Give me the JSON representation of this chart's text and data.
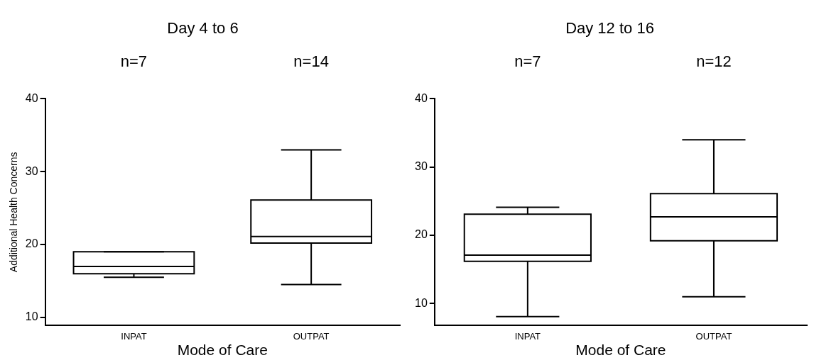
{
  "chart_data": [
    {
      "type": "box",
      "title": "Day 4 to 6",
      "xlabel": "Mode of Care",
      "ylabel": "Additional Health Concerns",
      "categories": [
        "INPAT",
        "OUTPAT"
      ],
      "boxes": [
        {
          "low": 15.5,
          "q1": 16,
          "median": 17,
          "q3": 19,
          "high": 19
        },
        {
          "low": 14.5,
          "q1": 20.2,
          "median": 21.1,
          "q3": 26.1,
          "high": 33
        }
      ],
      "color": "#000000",
      "ylim": [
        8.9,
        40
      ],
      "yticks": [
        10,
        20,
        30,
        40
      ],
      "grid": false,
      "annotations": [
        "n=7",
        "n=14"
      ]
    },
    {
      "type": "box",
      "title": "Day 12 to 16",
      "xlabel": "Mode of Care",
      "categories": [
        "INPAT",
        "OUTPAT"
      ],
      "boxes": [
        {
          "low": 8.1,
          "q1": 16.2,
          "median": 17.1,
          "q3": 23.1,
          "high": 24.1
        },
        {
          "low": 11,
          "q1": 19.2,
          "median": 22.7,
          "q3": 26.1,
          "high": 34
        }
      ],
      "color": "#000000",
      "ylim": [
        6.8,
        40
      ],
      "yticks": [
        10,
        20,
        30,
        40
      ],
      "grid": false,
      "annotations": [
        "n=7",
        "n=12"
      ]
    }
  ]
}
